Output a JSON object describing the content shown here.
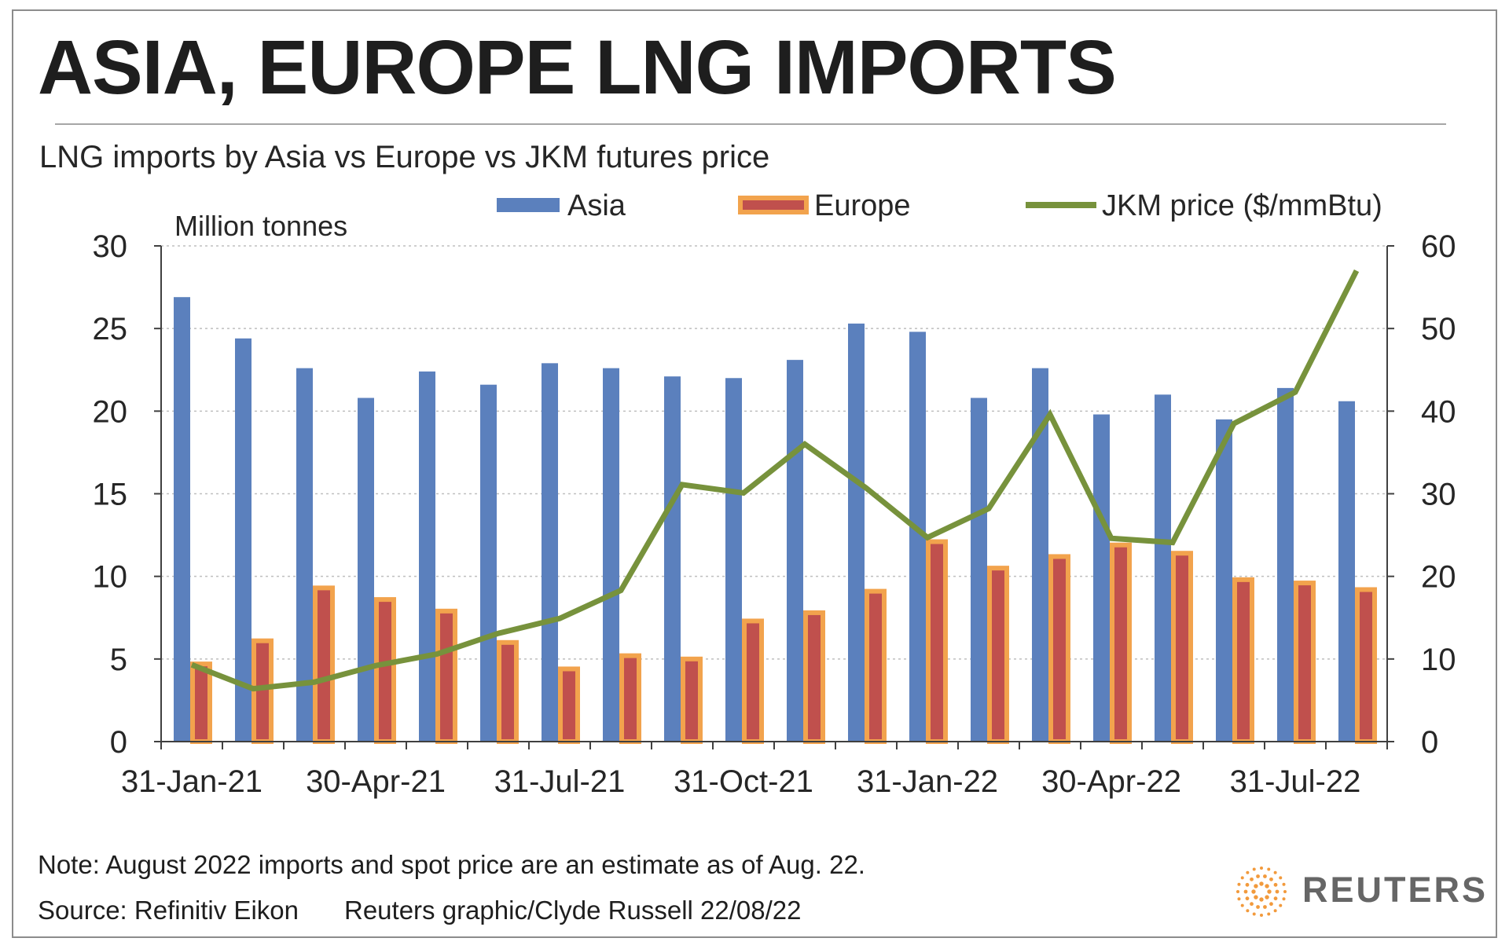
{
  "header": {
    "title": "ASIA, EUROPE LNG IMPORTS",
    "subtitle": "LNG imports by Asia vs Europe vs JKM futures price"
  },
  "footer": {
    "note": "Note: August 2022 imports and spot price are an estimate as of Aug. 22.",
    "source": "Source: Refinitiv Eikon",
    "credit": "Reuters graphic/Clyde Russell 22/08/22",
    "logo_text": "REUTERS"
  },
  "colors": {
    "asia": "#5b80bd",
    "europe_fill": "#c0504d",
    "europe_border": "#f2a34d",
    "jkm": "#77923c",
    "grid": "#bfbfbf",
    "logo_accent": "#f29a3c"
  },
  "chart_data": {
    "type": "bar",
    "title": "LNG imports by Asia vs Europe vs JKM futures price",
    "ylabel": "Million tonnes",
    "ylim": [
      0,
      30
    ],
    "y_ticks": [
      0,
      5,
      10,
      15,
      20,
      25,
      30
    ],
    "y2lim": [
      0,
      60
    ],
    "y2_ticks": [
      0,
      10,
      20,
      30,
      40,
      50,
      60
    ],
    "grid": true,
    "legend_position": "top",
    "categories": [
      "31-Jan-21",
      "28-Feb-21",
      "31-Mar-21",
      "30-Apr-21",
      "31-May-21",
      "30-Jun-21",
      "31-Jul-21",
      "31-Aug-21",
      "30-Sep-21",
      "31-Oct-21",
      "30-Nov-21",
      "31-Dec-21",
      "31-Jan-22",
      "28-Feb-22",
      "31-Mar-22",
      "30-Apr-22",
      "31-May-22",
      "30-Jun-22",
      "31-Jul-22",
      "31-Aug-22"
    ],
    "x_tick_labels": [
      "31-Jan-21",
      "30-Apr-21",
      "31-Jul-21",
      "31-Oct-21",
      "31-Jan-22",
      "30-Apr-22",
      "31-Jul-22"
    ],
    "series": [
      {
        "name": "Asia",
        "type": "bar",
        "axis": "left",
        "values": [
          26.9,
          24.4,
          22.6,
          20.8,
          22.4,
          21.6,
          22.9,
          22.6,
          22.1,
          22.0,
          23.1,
          25.3,
          24.8,
          20.8,
          22.6,
          19.8,
          21.0,
          19.5,
          21.4,
          20.6
        ]
      },
      {
        "name": "Europe",
        "type": "bar",
        "axis": "left",
        "values": [
          4.7,
          6.1,
          9.3,
          8.6,
          7.9,
          6.0,
          4.4,
          5.2,
          5.0,
          7.3,
          7.8,
          9.1,
          12.1,
          10.5,
          11.2,
          11.9,
          11.4,
          9.8,
          9.6,
          9.2
        ]
      },
      {
        "name": "JKM price ($/mmBtu)",
        "type": "line",
        "axis": "right",
        "values": [
          9.3,
          6.4,
          7.2,
          9.2,
          10.6,
          13.1,
          14.9,
          18.3,
          31.1,
          30.1,
          36.0,
          30.7,
          24.7,
          28.2,
          39.6,
          24.6,
          24.1,
          38.5,
          42.3,
          57.0
        ]
      }
    ]
  }
}
